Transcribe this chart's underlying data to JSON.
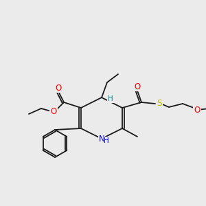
{
  "background_color": "#ebebeb",
  "bond_color": "#1a1a1a",
  "atom_colors": {
    "O": "#ff0000",
    "N": "#0000ee",
    "S": "#bbbb00",
    "H_label": "#008888",
    "C": "#1a1a1a"
  },
  "font_size_atoms": 8.5,
  "font_size_small": 7.5,
  "lw": 1.3
}
